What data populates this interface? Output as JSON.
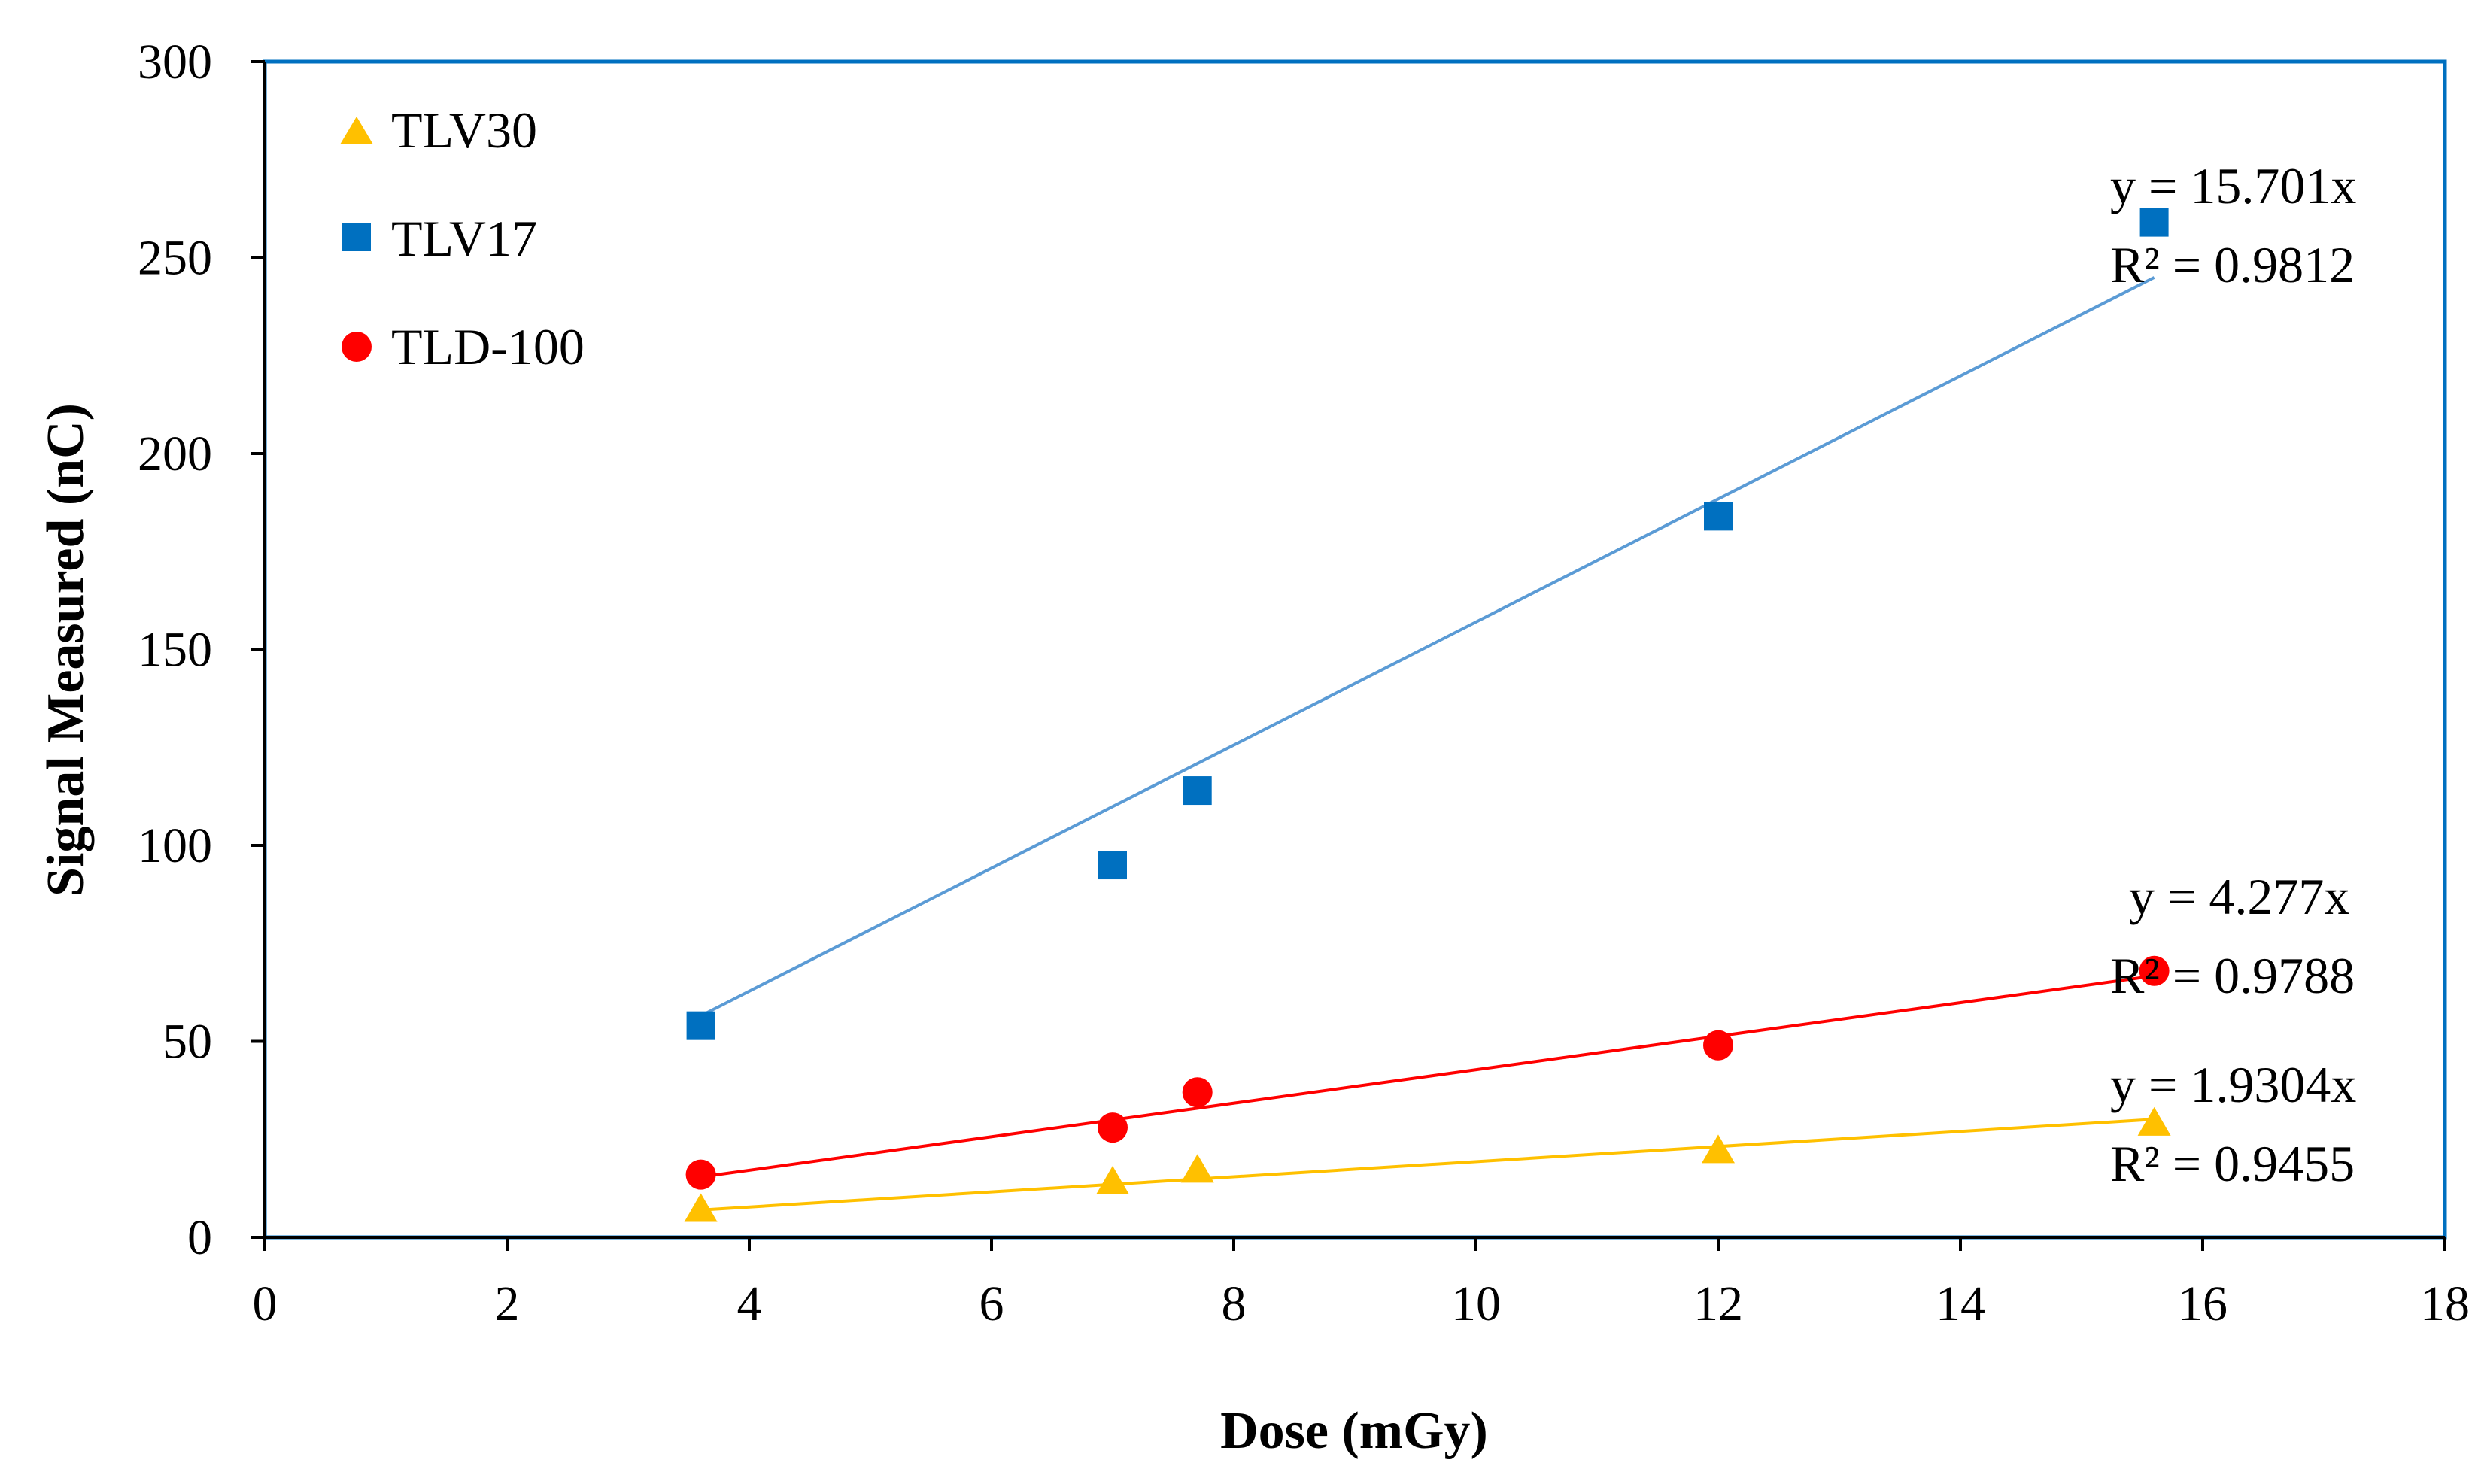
{
  "chart_data": {
    "type": "scatter",
    "title": "",
    "xlabel": "Dose (mGy)",
    "ylabel": "Signal Measured (nC)",
    "xlim": [
      0,
      18
    ],
    "ylim": [
      0,
      300
    ],
    "x_ticks": [
      "0",
      "2",
      "4",
      "6",
      "8",
      "10",
      "12",
      "14",
      "16",
      "18"
    ],
    "y_ticks": [
      "0",
      "50",
      "100",
      "150",
      "200",
      "250",
      "300"
    ],
    "grid": false,
    "legend_position": "top-left",
    "series": [
      {
        "name": "TLV30",
        "marker": "triangle",
        "color": "#FFC000",
        "line_color": "#FFC000",
        "x": [
          3.6,
          7.0,
          7.7,
          12.0,
          15.6
        ],
        "y": [
          7,
          14,
          17,
          22,
          29
        ],
        "slope": 1.9304,
        "equation": "y = 1.9304x",
        "r2": "R² = 0.9455"
      },
      {
        "name": "TLV17",
        "marker": "square",
        "color": "#0070C0",
        "line_color": "#5B9BD5",
        "x": [
          3.6,
          7.0,
          7.7,
          12.0,
          15.6
        ],
        "y": [
          54,
          95,
          114,
          184,
          259
        ],
        "slope": 15.701,
        "equation": "y = 15.701x",
        "r2": "R² = 0.9812"
      },
      {
        "name": "TLD-100",
        "marker": "circle",
        "color": "#FF0000",
        "line_color": "#FF0000",
        "x": [
          3.6,
          7.0,
          7.7,
          12.0,
          15.6
        ],
        "y": [
          16,
          28,
          37,
          49,
          68
        ],
        "slope": 4.277,
        "equation": "y = 4.277x",
        "r2": "R² = 0.9788"
      }
    ]
  }
}
